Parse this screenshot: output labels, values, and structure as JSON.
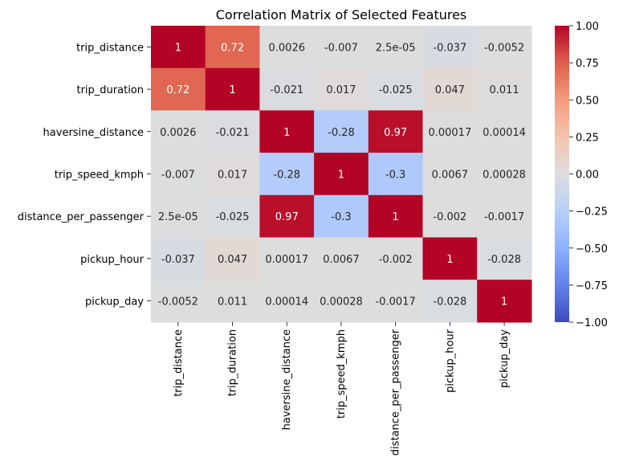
{
  "chart_data": {
    "type": "heatmap",
    "title": "Correlation Matrix of Selected Features",
    "colormap": "coolwarm",
    "vmin": -1.0,
    "vmax": 1.0,
    "row_labels": [
      "trip_distance",
      "trip_duration",
      "haversine_distance",
      "trip_speed_kmph",
      "distance_per_passenger",
      "pickup_hour",
      "pickup_day"
    ],
    "col_labels": [
      "trip_distance",
      "trip_duration",
      "haversine_distance",
      "trip_speed_kmph",
      "distance_per_passenger",
      "pickup_hour",
      "pickup_day"
    ],
    "values": [
      [
        1,
        0.72,
        0.0026,
        -0.007,
        2.5e-05,
        -0.037,
        -0.0052
      ],
      [
        0.72,
        1,
        -0.021,
        0.017,
        -0.025,
        0.047,
        0.011
      ],
      [
        0.0026,
        -0.021,
        1,
        -0.28,
        0.97,
        0.00017,
        0.00014
      ],
      [
        -0.007,
        0.017,
        -0.28,
        1,
        -0.3,
        0.0067,
        0.00028
      ],
      [
        2.5e-05,
        -0.025,
        0.97,
        -0.3,
        1,
        -0.002,
        -0.0017
      ],
      [
        -0.037,
        0.047,
        0.00017,
        0.0067,
        -0.002,
        1,
        -0.028
      ],
      [
        -0.0052,
        0.011,
        0.00014,
        0.00028,
        -0.0017,
        -0.028,
        1
      ]
    ],
    "annotations": [
      [
        "1",
        "0.72",
        "0.0026",
        "-0.007",
        "2.5e-05",
        "-0.037",
        "-0.0052"
      ],
      [
        "0.72",
        "1",
        "-0.021",
        "0.017",
        "-0.025",
        "0.047",
        "0.011"
      ],
      [
        "0.0026",
        "-0.021",
        "1",
        "-0.28",
        "0.97",
        "0.00017",
        "0.00014"
      ],
      [
        "-0.007",
        "0.017",
        "-0.28",
        "1",
        "-0.3",
        "0.0067",
        "0.00028"
      ],
      [
        "2.5e-05",
        "-0.025",
        "0.97",
        "-0.3",
        "1",
        "-0.002",
        "-0.0017"
      ],
      [
        "-0.037",
        "0.047",
        "0.00017",
        "0.0067",
        "-0.002",
        "1",
        "-0.028"
      ],
      [
        "-0.0052",
        "0.011",
        "0.00014",
        "0.00028",
        "-0.0017",
        "-0.028",
        "1"
      ]
    ],
    "colorbar_ticks": [
      1.0,
      0.75,
      0.5,
      0.25,
      0.0,
      -0.25,
      -0.5,
      -0.75,
      -1.0
    ],
    "colorbar_tick_labels": [
      "1.00",
      "0.75",
      "0.50",
      "0.25",
      "0.00",
      "−0.25",
      "−0.50",
      "−0.75",
      "−1.00"
    ],
    "xlabel": "",
    "ylabel": ""
  }
}
